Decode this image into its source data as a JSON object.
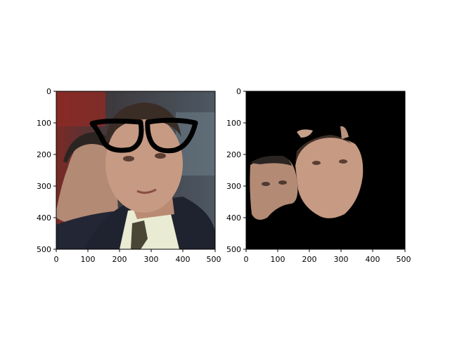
{
  "figure": {
    "panels": [
      {
        "content": "photo of men in suits; the front man's face overlaid with black thick-rimmed glasses",
        "x_ticks": [
          "0",
          "100",
          "200",
          "300",
          "400",
          "500"
        ],
        "y_ticks": [
          "0",
          "100",
          "200",
          "300",
          "400",
          "500"
        ]
      },
      {
        "content": "segmentation output: face regions kept, background masked to black",
        "x_ticks": [
          "0",
          "100",
          "200",
          "300",
          "400",
          "500"
        ],
        "y_ticks": [
          "0",
          "100",
          "200",
          "300",
          "400",
          "500"
        ]
      }
    ],
    "colors": {
      "mask": "#000000",
      "skin": "#c79a83",
      "suit": "#1f2330",
      "shirt": "#e9ebd3",
      "hair": "#3a2d25",
      "bg_red": "#8c2a26"
    }
  }
}
